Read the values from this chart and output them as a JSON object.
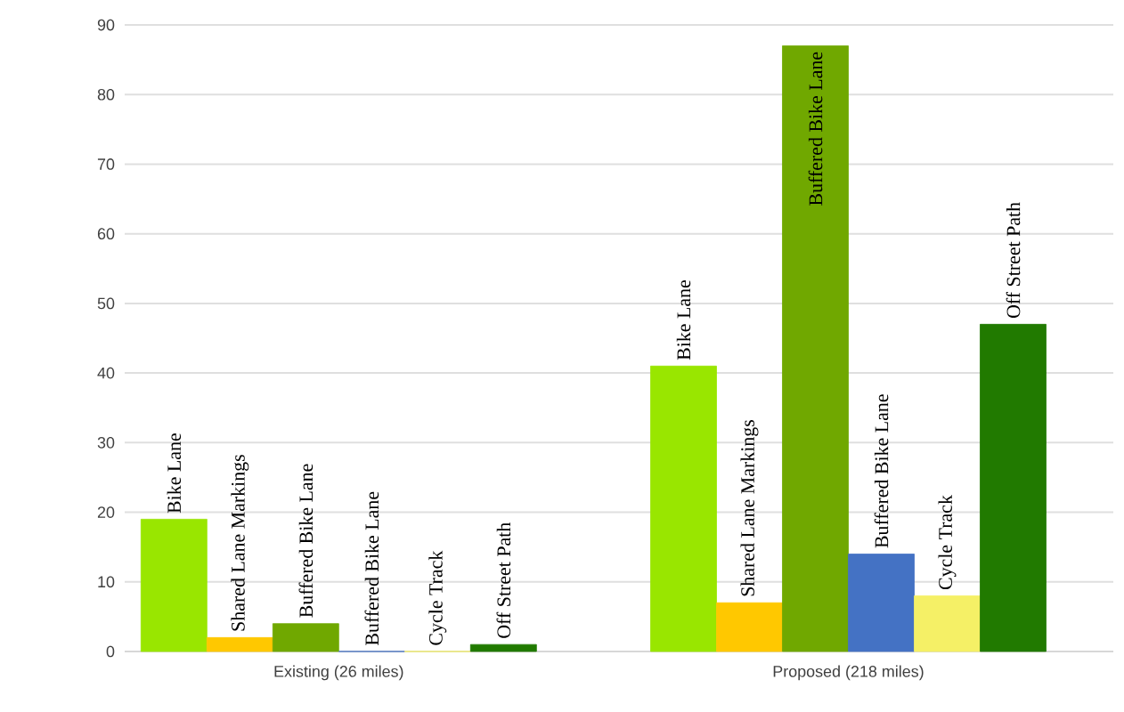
{
  "chart_data": {
    "type": "bar",
    "categories": [
      "Existing (26 miles)",
      "Proposed (218 miles)"
    ],
    "series": [
      {
        "name": "Bike Lane",
        "color": "#99e600",
        "values": [
          19,
          41
        ]
      },
      {
        "name": "Shared Lane Markings",
        "color": "#ffc800",
        "values": [
          2,
          7
        ]
      },
      {
        "name": "Buffered Bike Lane",
        "color": "#70a800",
        "values": [
          4,
          87
        ]
      },
      {
        "name": "Buffered Bike Lane",
        "color": "#4472c4",
        "values": [
          0,
          14
        ]
      },
      {
        "name": "Cycle Track",
        "color": "#f5f066",
        "values": [
          0,
          8
        ]
      },
      {
        "name": "Off Street Path",
        "color": "#217a00",
        "values": [
          1,
          47
        ]
      }
    ],
    "ylim": [
      0,
      90
    ],
    "yticks": [
      0,
      10,
      20,
      30,
      40,
      50,
      60,
      70,
      80,
      90
    ],
    "grid": "y"
  }
}
